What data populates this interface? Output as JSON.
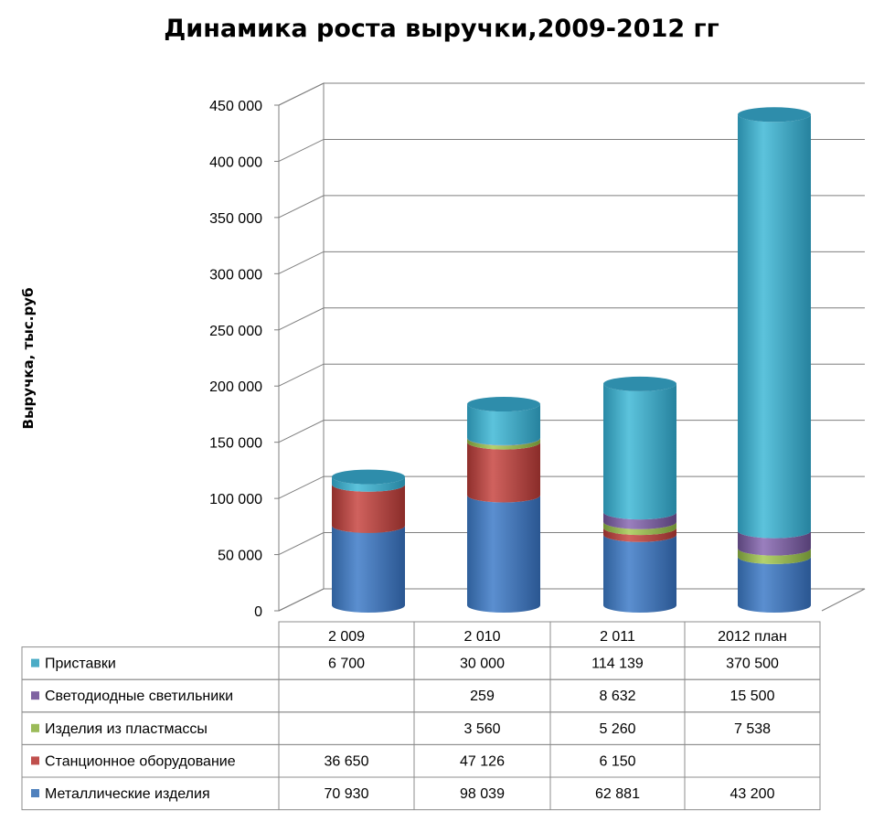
{
  "chart_data": {
    "type": "bar",
    "stacked": true,
    "style": "3d-cylinder",
    "title": "Динамика роста выручки,2009-2012 гг",
    "ylabel": "Выручка, тыс.руб",
    "xlabel": "",
    "ylim": [
      0,
      450000
    ],
    "yticks": [
      "0",
      "50 000",
      "100 000",
      "150 000",
      "200 000",
      "250 000",
      "300 000",
      "350 000",
      "400 000",
      "450 000"
    ],
    "categories": [
      "2 009",
      "2 010",
      "2 011",
      "2012 план"
    ],
    "legend_position": "data-table",
    "series": [
      {
        "name": "Металлические изделия",
        "color": "#4f81bd",
        "values": [
          70930,
          98039,
          62881,
          43200
        ],
        "labels": [
          "70 930",
          "98 039",
          "62 881",
          "43 200"
        ]
      },
      {
        "name": "Станционное оборудование",
        "color": "#c0504d",
        "values": [
          36650,
          47126,
          6150,
          null
        ],
        "labels": [
          "36 650",
          "47 126",
          "6 150",
          ""
        ]
      },
      {
        "name": "Изделия из пластмассы",
        "color": "#9bbb59",
        "values": [
          null,
          3560,
          5260,
          7538
        ],
        "labels": [
          "",
          "3 560",
          "5 260",
          "7 538"
        ]
      },
      {
        "name": "Светодиодные светильники",
        "color": "#8064a2",
        "values": [
          null,
          259,
          8632,
          15500
        ],
        "labels": [
          "",
          "259",
          "8 632",
          "15 500"
        ]
      },
      {
        "name": "Приставки",
        "color": "#4bacc6",
        "values": [
          6700,
          30000,
          114139,
          370500
        ],
        "labels": [
          "6 700",
          "30 000",
          "114 139",
          "370 500"
        ]
      }
    ],
    "table_row_order": [
      "Приставки",
      "Светодиодные светильники",
      "Изделия из пластмассы",
      "Станционное оборудование",
      "Металлические изделия"
    ]
  }
}
